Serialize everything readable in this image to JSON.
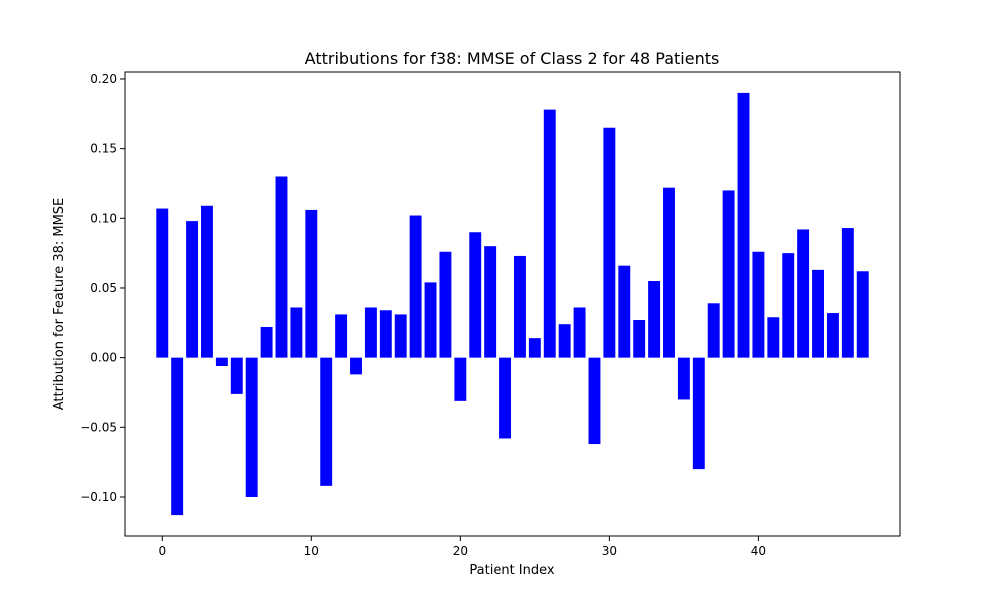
{
  "chart_data": {
    "type": "bar",
    "title": "Attributions for f38: MMSE of Class 2 for 48 Patients",
    "xlabel": "Patient Index",
    "ylabel": "Attribution for Feature 38: MMSE",
    "bar_color": "#0000ff",
    "xlim": [
      -2.5,
      49.5
    ],
    "ylim": [
      -0.128,
      0.205
    ],
    "x_ticks": [
      0,
      10,
      20,
      30,
      40
    ],
    "x_tick_labels": [
      "0",
      "10",
      "20",
      "30",
      "40"
    ],
    "y_ticks": [
      -0.1,
      -0.05,
      0.0,
      0.05,
      0.1,
      0.15,
      0.2
    ],
    "y_tick_labels": [
      "−0.10",
      "−0.05",
      "0.00",
      "0.05",
      "0.10",
      "0.15",
      "0.20"
    ],
    "grid": false,
    "categories": [
      0,
      1,
      2,
      3,
      4,
      5,
      6,
      7,
      8,
      9,
      10,
      11,
      12,
      13,
      14,
      15,
      16,
      17,
      18,
      19,
      20,
      21,
      22,
      23,
      24,
      25,
      26,
      27,
      28,
      29,
      30,
      31,
      32,
      33,
      34,
      35,
      36,
      37,
      38,
      39,
      40,
      41,
      42,
      43,
      44,
      45,
      46,
      47
    ],
    "values": [
      0.107,
      -0.113,
      0.098,
      0.109,
      -0.006,
      -0.026,
      -0.1,
      0.022,
      0.13,
      0.036,
      0.106,
      -0.092,
      0.031,
      -0.012,
      0.036,
      0.034,
      0.031,
      0.102,
      0.054,
      0.076,
      -0.031,
      0.09,
      0.08,
      -0.058,
      0.073,
      0.014,
      0.178,
      0.024,
      0.036,
      -0.062,
      0.165,
      0.066,
      0.027,
      0.055,
      0.122,
      -0.03,
      -0.08,
      0.039,
      0.12,
      0.19,
      0.076,
      0.029,
      0.075,
      0.092,
      0.063,
      0.032,
      0.093,
      0.062
    ]
  }
}
